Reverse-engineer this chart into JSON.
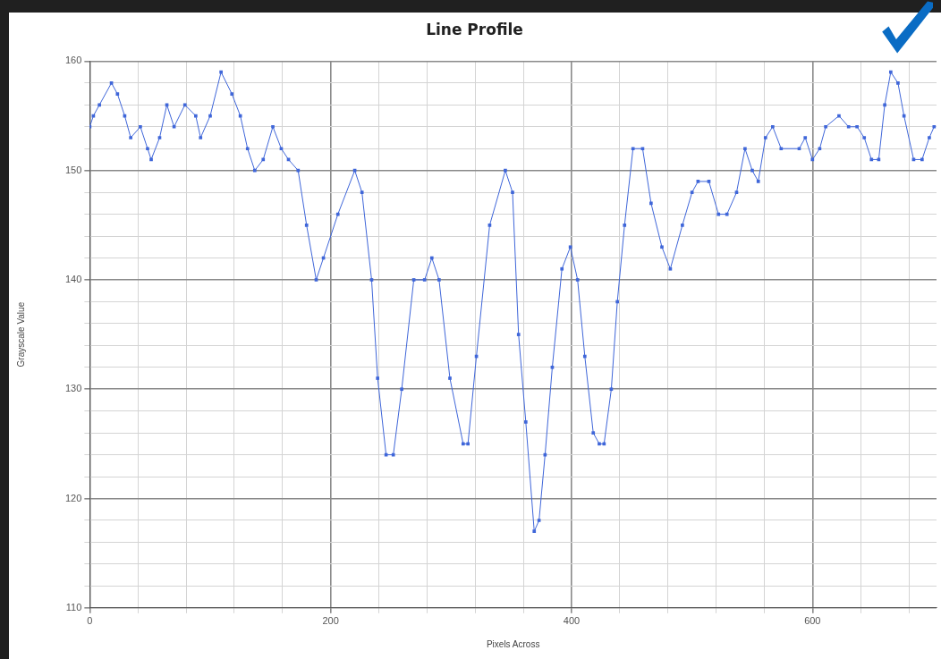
{
  "chart_data": {
    "type": "line",
    "title": "Line Profile",
    "xlabel": "Pixels Across",
    "ylabel": "Grayscale Value",
    "x": [
      0,
      3,
      8,
      18,
      23,
      29,
      34,
      42,
      48,
      51,
      58,
      64,
      70,
      79,
      88,
      92,
      100,
      109,
      118,
      125,
      131,
      137,
      144,
      152,
      159,
      165,
      173,
      180,
      188,
      194,
      206,
      220,
      226,
      234,
      239,
      246,
      252,
      259,
      269,
      278,
      284,
      290,
      299,
      310,
      314,
      321,
      332,
      345,
      351,
      356,
      362,
      369,
      373,
      378,
      384,
      392,
      399,
      405,
      411,
      418,
      423,
      427,
      433,
      438,
      444,
      451,
      459,
      466,
      475,
      482,
      492,
      500,
      505,
      514,
      522,
      529,
      537,
      544,
      550,
      555,
      561,
      567,
      574,
      589,
      594,
      600,
      606,
      611,
      622,
      630,
      637,
      643,
      649,
      655,
      660,
      665,
      671,
      676,
      684,
      691,
      697,
      701
    ],
    "series": [
      {
        "color": "#3f66d9",
        "values": [
          154,
          155,
          156,
          158,
          157,
          155,
          153,
          154,
          152,
          151,
          153,
          156,
          154,
          156,
          155,
          153,
          155,
          159,
          157,
          155,
          152,
          150,
          151,
          154,
          152,
          151,
          150,
          145,
          140,
          142,
          146,
          150,
          148,
          140,
          131,
          124,
          124,
          130,
          140,
          140,
          142,
          140,
          131,
          125,
          125,
          133,
          145,
          150,
          148,
          135,
          127,
          117,
          118,
          124,
          132,
          141,
          143,
          140,
          133,
          126,
          125,
          125,
          130,
          138,
          145,
          152,
          152,
          147,
          143,
          141,
          145,
          148,
          149,
          149,
          146,
          146,
          148,
          152,
          150,
          149,
          153,
          154,
          152,
          152,
          153,
          151,
          152,
          154,
          155,
          154,
          154,
          153,
          151,
          151,
          156,
          159,
          158,
          155,
          151,
          151,
          153,
          154
        ]
      }
    ],
    "xlim": [
      0,
      703
    ],
    "xticks": [
      0,
      {
        "value": 40,
        "label": null
      },
      {
        "value": 80,
        "label": null
      },
      {
        "value": 120,
        "label": null
      },
      {
        "value": 160,
        "label": null
      },
      200,
      {
        "value": 240,
        "label": null
      },
      {
        "value": 280,
        "label": null
      },
      {
        "value": 320,
        "label": null
      },
      {
        "value": 360,
        "label": null
      },
      400,
      {
        "value": 440,
        "label": null
      },
      {
        "value": 480,
        "label": null
      },
      {
        "value": 520,
        "label": null
      },
      {
        "value": 560,
        "label": null
      },
      600,
      {
        "value": 640,
        "label": null
      },
      {
        "value": 680,
        "label": null
      }
    ],
    "ylim": [
      110,
      160
    ],
    "yticks": [
      110,
      {
        "value": 112,
        "label": null
      },
      {
        "value": 114,
        "label": null
      },
      {
        "value": 116,
        "label": null
      },
      {
        "value": 118,
        "label": null
      },
      120,
      {
        "value": 122,
        "label": null
      },
      {
        "value": 124,
        "label": null
      },
      {
        "value": 126,
        "label": null
      },
      {
        "value": 128,
        "label": null
      },
      130,
      {
        "value": 132,
        "label": null
      },
      {
        "value": 134,
        "label": null
      },
      {
        "value": 136,
        "label": null
      },
      {
        "value": 138,
        "label": null
      },
      140,
      {
        "value": 142,
        "label": null
      },
      {
        "value": 144,
        "label": null
      },
      {
        "value": 146,
        "label": null
      },
      {
        "value": 148,
        "label": null
      },
      150,
      {
        "value": 152,
        "label": null
      },
      {
        "value": 154,
        "label": null
      },
      {
        "value": 156,
        "label": null
      },
      {
        "value": 158,
        "label": null
      },
      160
    ],
    "grid": true,
    "legend": false,
    "marker": "square",
    "line_style": "solid"
  }
}
